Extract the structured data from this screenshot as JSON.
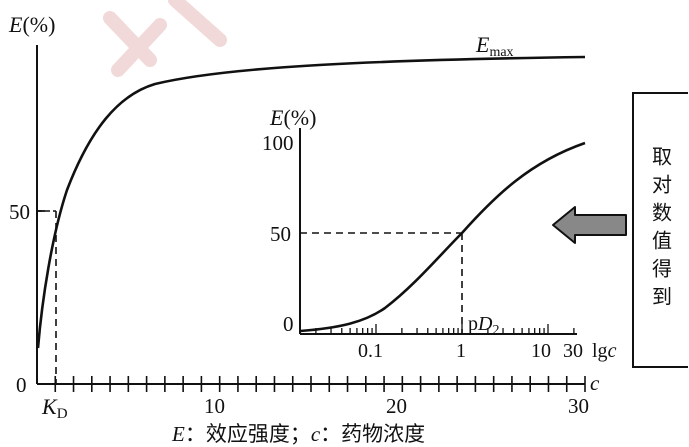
{
  "main_chart": {
    "y_label": "E(%)",
    "y_ticks": [
      "0",
      "50"
    ],
    "x_ticks": [
      "10",
      "20",
      "30"
    ],
    "x_var": "c",
    "curve_label": {
      "main": "E",
      "sub": "max"
    },
    "kd_label": {
      "main": "K",
      "sub": "D"
    }
  },
  "inset_chart": {
    "y_label": "E(%)",
    "y_ticks": [
      "0",
      "50",
      "100"
    ],
    "x_ticks": [
      "0.1",
      "1",
      "10",
      "30"
    ],
    "x_var": "lgc",
    "pd2_label": "pD₂"
  },
  "arrow_box": {
    "text": "取对数值得到"
  },
  "caption": "E：效应强度；c：药物浓度",
  "colors": {
    "ink": "#111111",
    "arrow_fill": "#888888",
    "watermark": "#f2d9d9"
  }
}
